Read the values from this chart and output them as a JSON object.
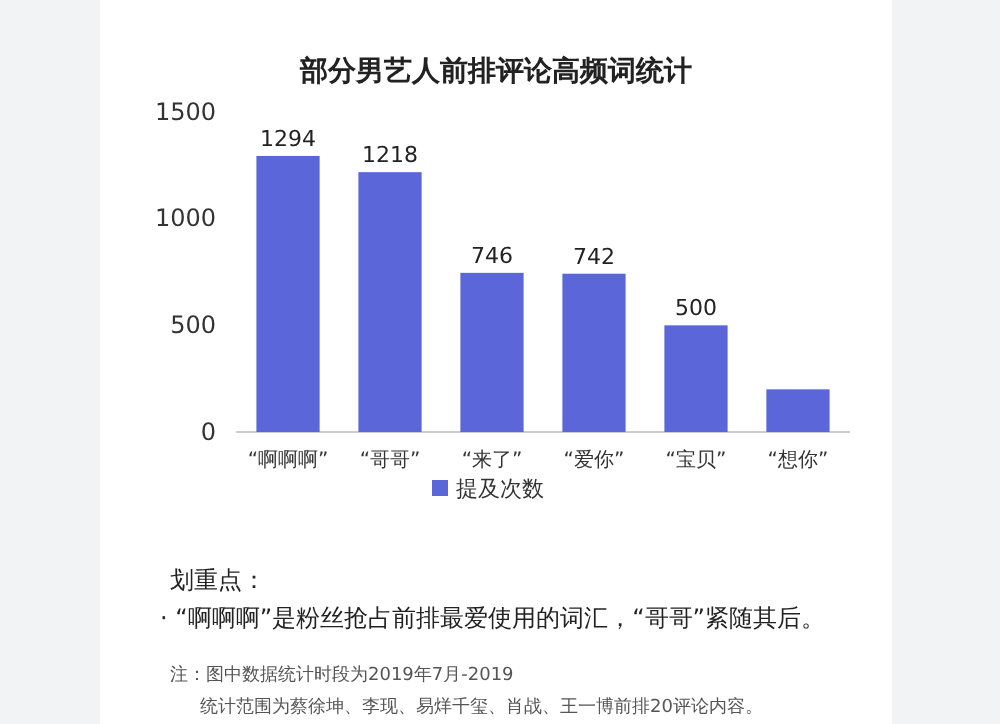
{
  "chart_data": {
    "type": "bar",
    "title": "部分男艺人前排评论高频词统计",
    "categories": [
      "“啊啊啊”",
      "“哥哥”",
      "“来了”",
      "“爱你”",
      "“宝贝”",
      "“想你”"
    ],
    "series": [
      {
        "name": "提及次数",
        "color": "#5b67d8",
        "values": [
          1294,
          1218,
          746,
          742,
          500,
          200
        ]
      }
    ],
    "value_labels": [
      "1294",
      "1218",
      "746",
      "742",
      "500",
      null
    ],
    "ylim": [
      0,
      1500
    ],
    "yticks": [
      0,
      500,
      1000,
      1500
    ],
    "grid": false,
    "legend": "bottom",
    "annotations": [
      "划重点：",
      "· “啊啊啊”是粉丝抢占前排最爱使用的词汇，“哥哥”紧随其后。",
      "注：图中数据统计时段为2019年7月-2019",
      "统计范围为蔡徐坤、李现、易烊千玺、肖战、王一博前排20评论内容。"
    ]
  }
}
